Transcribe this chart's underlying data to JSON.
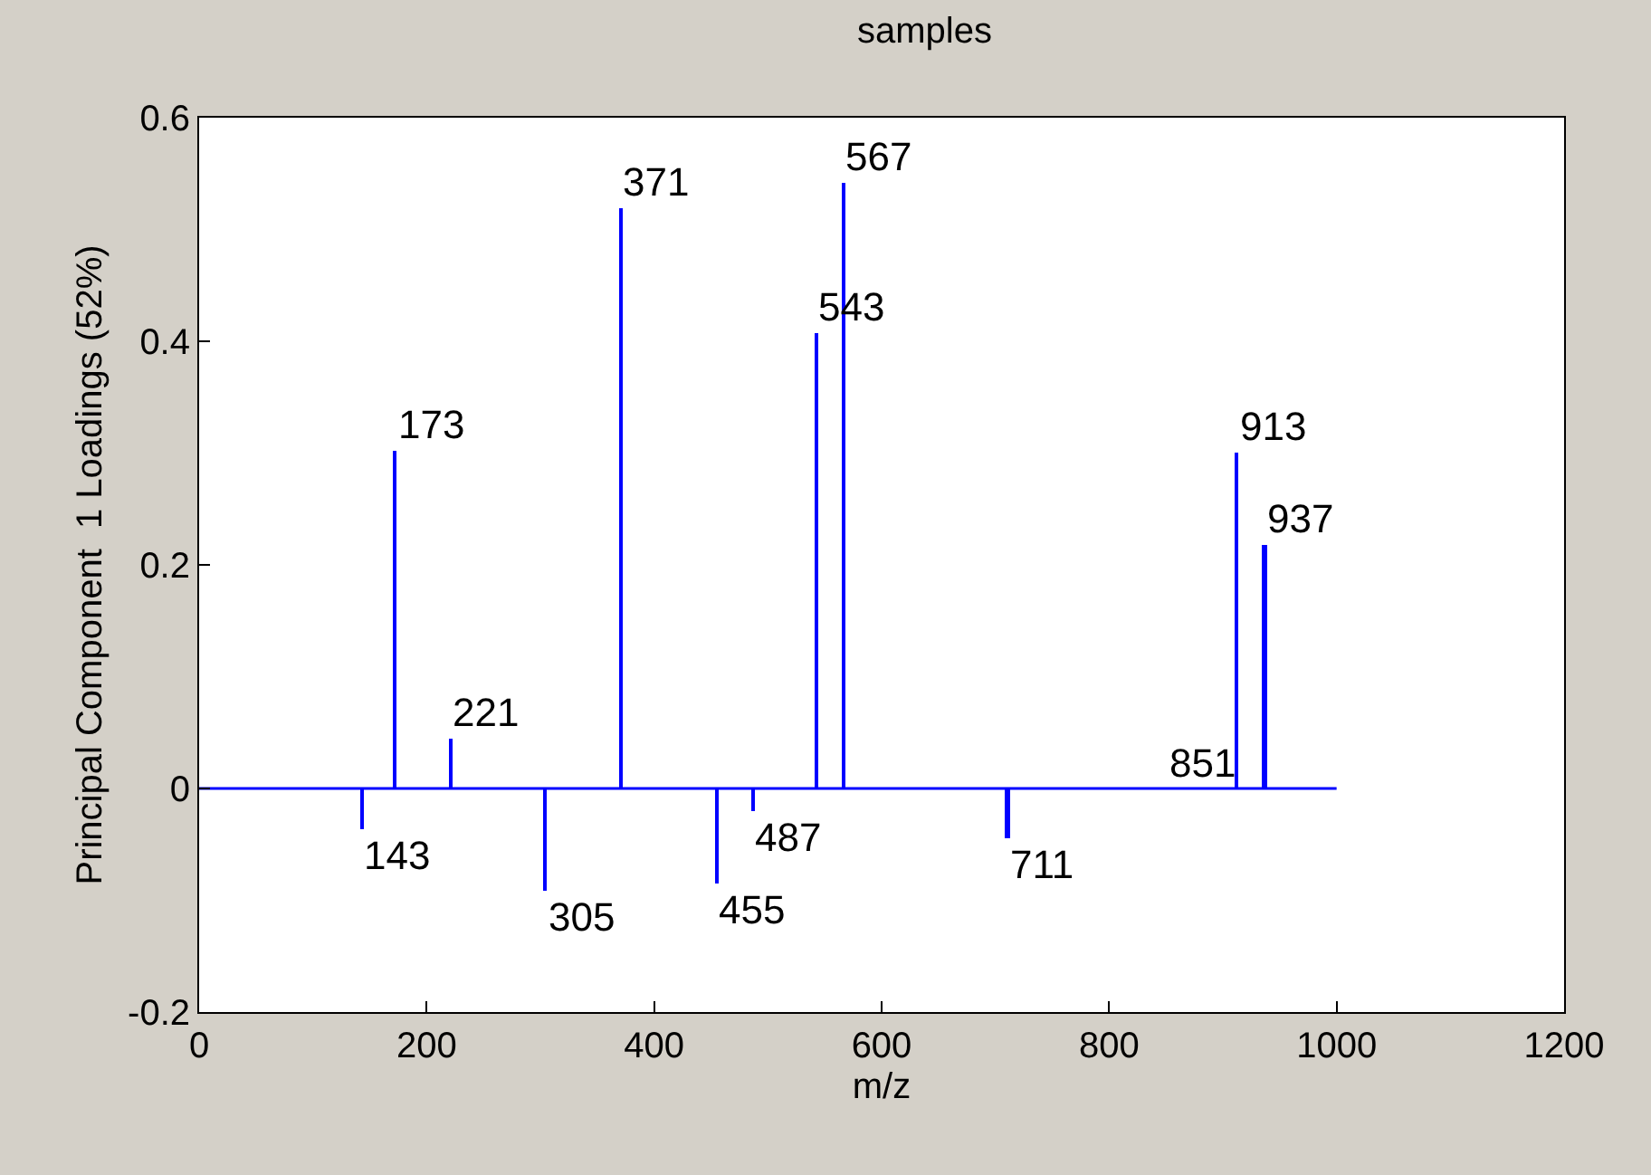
{
  "chart_data": {
    "type": "bar",
    "title": "samples",
    "xlabel": "m/z",
    "ylabel": "Principal Component  1 Loadings (52%)",
    "x": [
      143,
      173,
      221,
      305,
      371,
      455,
      487,
      543,
      567,
      711,
      851,
      913,
      937
    ],
    "series": [
      {
        "color": "#0000ff",
        "values": [
          -0.037,
          0.302,
          0.044,
          -0.091,
          0.519,
          -0.085,
          -0.02,
          0.408,
          0.541,
          -0.045,
          0.0,
          0.3,
          0.218
        ]
      },
      {
        "type": "line",
        "color": "#0000ff",
        "x": [
          0,
          1000
        ],
        "values": [
          0,
          0
        ]
      }
    ],
    "annotations": [
      {
        "text": "143",
        "x": 143,
        "y": -0.037
      },
      {
        "text": "173",
        "x": 173,
        "y": 0.302
      },
      {
        "text": "221",
        "x": 221,
        "y": 0.044
      },
      {
        "text": "305",
        "x": 305,
        "y": -0.091
      },
      {
        "text": "371",
        "x": 371,
        "y": 0.519
      },
      {
        "text": "455",
        "x": 455,
        "y": -0.085
      },
      {
        "text": "487",
        "x": 487,
        "y": -0.02
      },
      {
        "text": "543",
        "x": 543,
        "y": 0.408
      },
      {
        "text": "567",
        "x": 567,
        "y": 0.541
      },
      {
        "text": "711",
        "x": 711,
        "y": -0.045
      },
      {
        "text": "851",
        "x": 851,
        "y": 0.0
      },
      {
        "text": "913",
        "x": 913,
        "y": 0.3
      },
      {
        "text": "937",
        "x": 937,
        "y": 0.218
      }
    ],
    "xlim": [
      0,
      1200
    ],
    "xticks": [
      0,
      200,
      400,
      600,
      800,
      1000,
      1200
    ],
    "ylim": [
      -0.2,
      0.6
    ],
    "yticks": [
      -0.2,
      0,
      0.2,
      0.4,
      0.6
    ]
  }
}
